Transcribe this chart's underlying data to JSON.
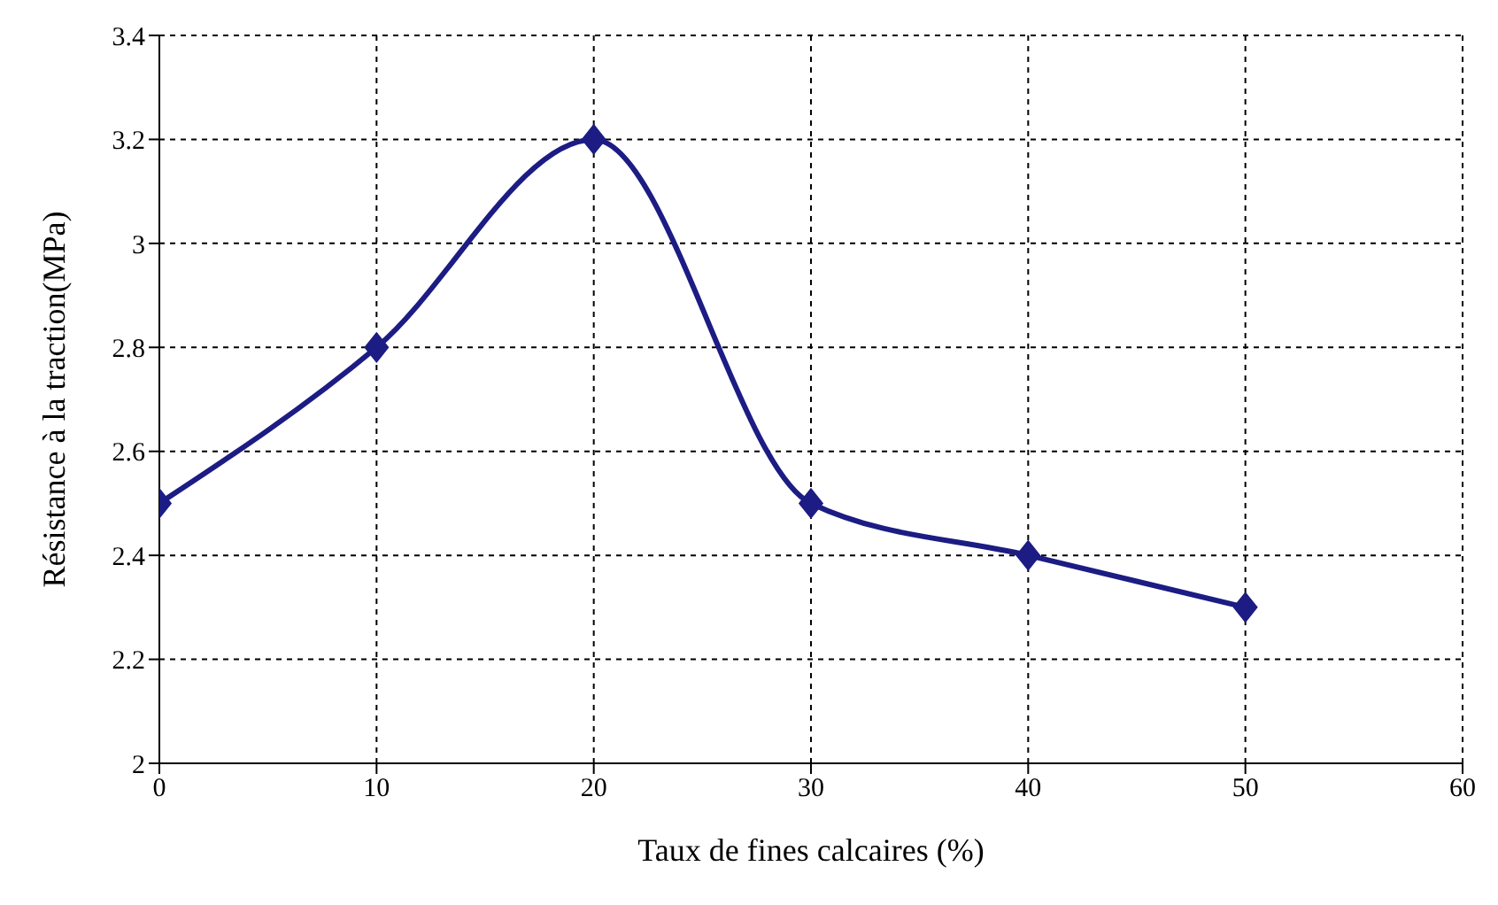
{
  "chart_data": {
    "type": "line",
    "xlabel": "Taux de fines calcaires (%)",
    "ylabel": "Résistance à la traction(MPa)",
    "x": [
      0,
      10,
      20,
      30,
      40,
      50
    ],
    "series": [
      {
        "color": "#1c1c84",
        "values": [
          2.5,
          2.8,
          3.2,
          2.5,
          2.4,
          2.3
        ]
      }
    ],
    "xlim": [
      0,
      60
    ],
    "xticks": [
      0,
      10,
      20,
      30,
      40,
      50,
      60
    ],
    "ylim": [
      2,
      3.4
    ],
    "yticks": [
      2,
      2.2,
      2.4,
      2.6,
      2.8,
      3,
      3.2,
      3.4
    ],
    "grid": true,
    "marker": "diamond",
    "line_style": "solid"
  }
}
